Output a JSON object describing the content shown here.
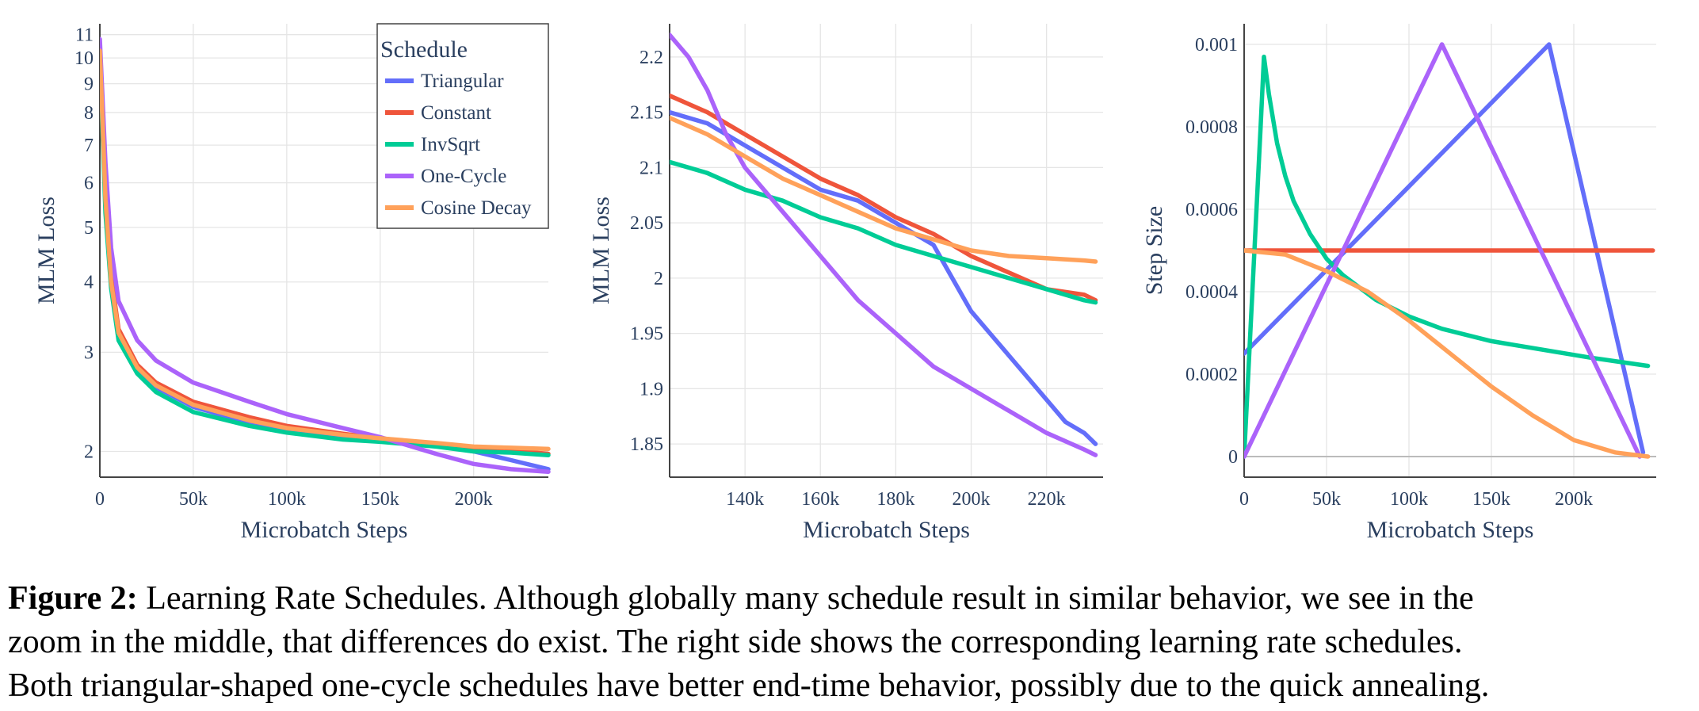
{
  "colors": {
    "Triangular": "#636efa",
    "Constant": "#ef553b",
    "InvSqrt": "#00cc96",
    "One-Cycle": "#ab63fa",
    "Cosine Decay": "#ffa15a",
    "grid": "#e5e5e5",
    "axis": "#444444",
    "zero": "#bbbbbb"
  },
  "chart_data": [
    {
      "type": "line",
      "xlabel": "Microbatch Steps",
      "ylabel": "MLM Loss",
      "yscale": "log",
      "xlim": [
        0,
        240000
      ],
      "ylim": [
        1.8,
        11.5
      ],
      "xticks": [
        0,
        50000,
        100000,
        150000,
        200000
      ],
      "xtick_labels": [
        "0",
        "50k",
        "100k",
        "150k",
        "200k"
      ],
      "yticks": [
        2,
        3,
        4,
        5,
        6,
        7,
        8,
        9,
        10,
        11
      ],
      "ytick_labels": [
        "2",
        "3",
        "4",
        "5",
        "6",
        "7",
        "8",
        "9",
        "10",
        "11"
      ],
      "grid": true,
      "legend": {
        "title": "Schedule",
        "placement": "top-right",
        "entries": [
          "Triangular",
          "Constant",
          "InvSqrt",
          "One-Cycle",
          "Cosine Decay"
        ]
      },
      "series": [
        {
          "name": "Triangular",
          "x": [
            0,
            3000,
            6000,
            10000,
            20000,
            30000,
            50000,
            80000,
            100000,
            130000,
            150000,
            180000,
            200000,
            220000,
            240000
          ],
          "y": [
            10.2,
            5.5,
            4.0,
            3.2,
            2.8,
            2.6,
            2.4,
            2.25,
            2.18,
            2.12,
            2.09,
            2.05,
            2.0,
            1.93,
            1.86
          ]
        },
        {
          "name": "Constant",
          "x": [
            0,
            3000,
            6000,
            10000,
            20000,
            30000,
            50000,
            80000,
            100000,
            130000,
            150000,
            180000,
            200000,
            220000,
            240000
          ],
          "y": [
            10.5,
            5.8,
            4.1,
            3.3,
            2.85,
            2.65,
            2.45,
            2.3,
            2.22,
            2.15,
            2.11,
            2.06,
            2.03,
            2.01,
            1.98
          ]
        },
        {
          "name": "InvSqrt",
          "x": [
            0,
            3000,
            6000,
            10000,
            20000,
            30000,
            50000,
            80000,
            100000,
            130000,
            150000,
            180000,
            200000,
            220000,
            240000
          ],
          "y": [
            10.0,
            5.3,
            3.9,
            3.15,
            2.75,
            2.55,
            2.35,
            2.22,
            2.16,
            2.1,
            2.08,
            2.04,
            2.0,
            1.99,
            1.97
          ]
        },
        {
          "name": "One-Cycle",
          "x": [
            0,
            3000,
            6000,
            10000,
            20000,
            30000,
            50000,
            80000,
            100000,
            130000,
            150000,
            180000,
            200000,
            220000,
            240000
          ],
          "y": [
            10.8,
            6.5,
            4.6,
            3.7,
            3.15,
            2.9,
            2.65,
            2.45,
            2.33,
            2.2,
            2.12,
            1.98,
            1.9,
            1.86,
            1.84
          ]
        },
        {
          "name": "Cosine Decay",
          "x": [
            0,
            3000,
            6000,
            10000,
            20000,
            30000,
            50000,
            80000,
            100000,
            130000,
            150000,
            180000,
            200000,
            220000,
            240000
          ],
          "y": [
            10.3,
            5.6,
            4.0,
            3.25,
            2.82,
            2.62,
            2.42,
            2.27,
            2.2,
            2.14,
            2.11,
            2.07,
            2.04,
            2.03,
            2.02
          ]
        }
      ]
    },
    {
      "type": "line",
      "xlabel": "Microbatch Steps",
      "ylabel": "MLM Loss",
      "xlim": [
        120000,
        235000
      ],
      "ylim": [
        1.82,
        2.23
      ],
      "xticks": [
        140000,
        160000,
        180000,
        200000,
        220000
      ],
      "xtick_labels": [
        "140k",
        "160k",
        "180k",
        "200k",
        "220k"
      ],
      "yticks": [
        1.85,
        1.9,
        1.95,
        2,
        2.05,
        2.1,
        2.15,
        2.2
      ],
      "ytick_labels": [
        "1.85",
        "1.9",
        "1.95",
        "2",
        "2.05",
        "2.1",
        "2.15",
        "2.2"
      ],
      "grid": true,
      "series": [
        {
          "name": "Triangular",
          "x": [
            120000,
            130000,
            140000,
            150000,
            160000,
            170000,
            180000,
            190000,
            195000,
            200000,
            205000,
            210000,
            215000,
            220000,
            225000,
            230000,
            233000
          ],
          "y": [
            2.15,
            2.14,
            2.12,
            2.1,
            2.08,
            2.07,
            2.05,
            2.03,
            2.0,
            1.97,
            1.95,
            1.93,
            1.91,
            1.89,
            1.87,
            1.86,
            1.85
          ]
        },
        {
          "name": "Constant",
          "x": [
            120000,
            130000,
            140000,
            150000,
            160000,
            170000,
            180000,
            190000,
            200000,
            210000,
            220000,
            230000,
            233000
          ],
          "y": [
            2.165,
            2.15,
            2.13,
            2.11,
            2.09,
            2.075,
            2.055,
            2.04,
            2.02,
            2.005,
            1.99,
            1.985,
            1.98
          ]
        },
        {
          "name": "InvSqrt",
          "x": [
            120000,
            130000,
            140000,
            150000,
            160000,
            170000,
            180000,
            190000,
            200000,
            210000,
            220000,
            230000,
            233000
          ],
          "y": [
            2.105,
            2.095,
            2.08,
            2.07,
            2.055,
            2.045,
            2.03,
            2.02,
            2.01,
            2.0,
            1.99,
            1.98,
            1.978
          ]
        },
        {
          "name": "One-Cycle",
          "x": [
            120000,
            125000,
            130000,
            135000,
            140000,
            150000,
            160000,
            170000,
            180000,
            190000,
            200000,
            210000,
            220000,
            230000,
            233000
          ],
          "y": [
            2.22,
            2.2,
            2.17,
            2.13,
            2.1,
            2.06,
            2.02,
            1.98,
            1.95,
            1.92,
            1.9,
            1.88,
            1.86,
            1.845,
            1.84
          ]
        },
        {
          "name": "Cosine Decay",
          "x": [
            120000,
            130000,
            140000,
            150000,
            160000,
            170000,
            180000,
            190000,
            200000,
            210000,
            220000,
            230000,
            233000
          ],
          "y": [
            2.145,
            2.13,
            2.11,
            2.09,
            2.075,
            2.06,
            2.045,
            2.035,
            2.025,
            2.02,
            2.018,
            2.016,
            2.015
          ]
        }
      ]
    },
    {
      "type": "line",
      "xlabel": "Microbatch Steps",
      "ylabel": "Step Size",
      "xlim": [
        0,
        250000
      ],
      "ylim": [
        -5e-05,
        0.00105
      ],
      "xticks": [
        0,
        50000,
        100000,
        150000,
        200000
      ],
      "xtick_labels": [
        "0",
        "50k",
        "100k",
        "150k",
        "200k"
      ],
      "yticks": [
        0,
        0.0002,
        0.0004,
        0.0006,
        0.0008,
        0.001
      ],
      "ytick_labels": [
        "0",
        "0.0002",
        "0.0004",
        "0.0006",
        "0.0008",
        "0.001"
      ],
      "grid": true,
      "series": [
        {
          "name": "Triangular",
          "x": [
            0,
            185000,
            242000
          ],
          "y": [
            0.00025,
            0.001,
            1e-05
          ]
        },
        {
          "name": "Constant",
          "x": [
            0,
            248000
          ],
          "y": [
            0.0005,
            0.0005
          ]
        },
        {
          "name": "InvSqrt",
          "x": [
            0,
            5000,
            10000,
            12000,
            15000,
            20000,
            25000,
            30000,
            40000,
            50000,
            60000,
            80000,
            100000,
            120000,
            150000,
            180000,
            210000,
            245000
          ],
          "y": [
            0,
            0.0004,
            0.0008,
            0.00097,
            0.00088,
            0.00076,
            0.00068,
            0.00062,
            0.00054,
            0.00048,
            0.00044,
            0.00038,
            0.00034,
            0.00031,
            0.00028,
            0.00026,
            0.00024,
            0.00022
          ]
        },
        {
          "name": "One-Cycle",
          "x": [
            0,
            120000,
            240000
          ],
          "y": [
            0,
            0.001,
            0
          ]
        },
        {
          "name": "Cosine Decay",
          "x": [
            0,
            25000,
            50000,
            75000,
            100000,
            125000,
            150000,
            175000,
            200000,
            225000,
            245000
          ],
          "y": [
            0.0005,
            0.00049,
            0.00045,
            0.0004,
            0.00033,
            0.00025,
            0.00017,
            0.0001,
            4e-05,
            1e-05,
            0
          ]
        }
      ]
    }
  ],
  "caption": {
    "figure_label": "Figure 2:",
    "line1": " Learning Rate Schedules. Although globally many schedule result in similar behavior, we see in the",
    "line2": "zoom in the middle, that differences do exist. The right side shows the corresponding learning rate schedules.",
    "line3": "Both triangular-shaped one-cycle schedules have better end-time behavior, possibly due to the quick annealing."
  }
}
